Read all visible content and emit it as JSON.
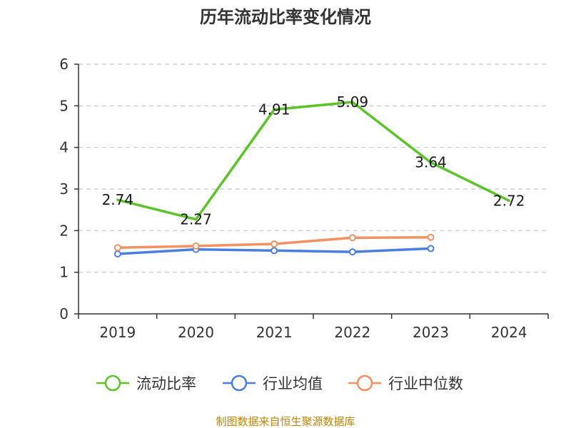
{
  "chart_data": {
    "type": "line",
    "title": "历年流动比率变化情况",
    "categories": [
      "2019",
      "2020",
      "2021",
      "2022",
      "2023",
      "2024"
    ],
    "ylim": [
      0,
      6
    ],
    "yticks": [
      "0",
      "1",
      "2",
      "3",
      "4",
      "5",
      "6"
    ],
    "grid": true,
    "legend_position": "bottom",
    "series": [
      {
        "name": "流动比率",
        "color": "#5cc32a",
        "values": [
          2.74,
          2.27,
          4.91,
          5.09,
          3.64,
          2.72
        ],
        "show_labels": true,
        "markers": false
      },
      {
        "name": "行业均值",
        "color": "#4a7fe0",
        "values": [
          1.44,
          1.55,
          1.52,
          1.49,
          1.57,
          null
        ],
        "show_labels": false,
        "markers": true
      },
      {
        "name": "行业中位数",
        "color": "#f59060",
        "values": [
          1.59,
          1.63,
          1.68,
          1.83,
          1.84,
          null
        ],
        "show_labels": false,
        "markers": true
      }
    ],
    "data_labels": [
      "2.74",
      "2.27",
      "4.91",
      "5.09",
      "3.64",
      "2.72"
    ]
  },
  "source_text": "制图数据来自恒生聚源数据库"
}
